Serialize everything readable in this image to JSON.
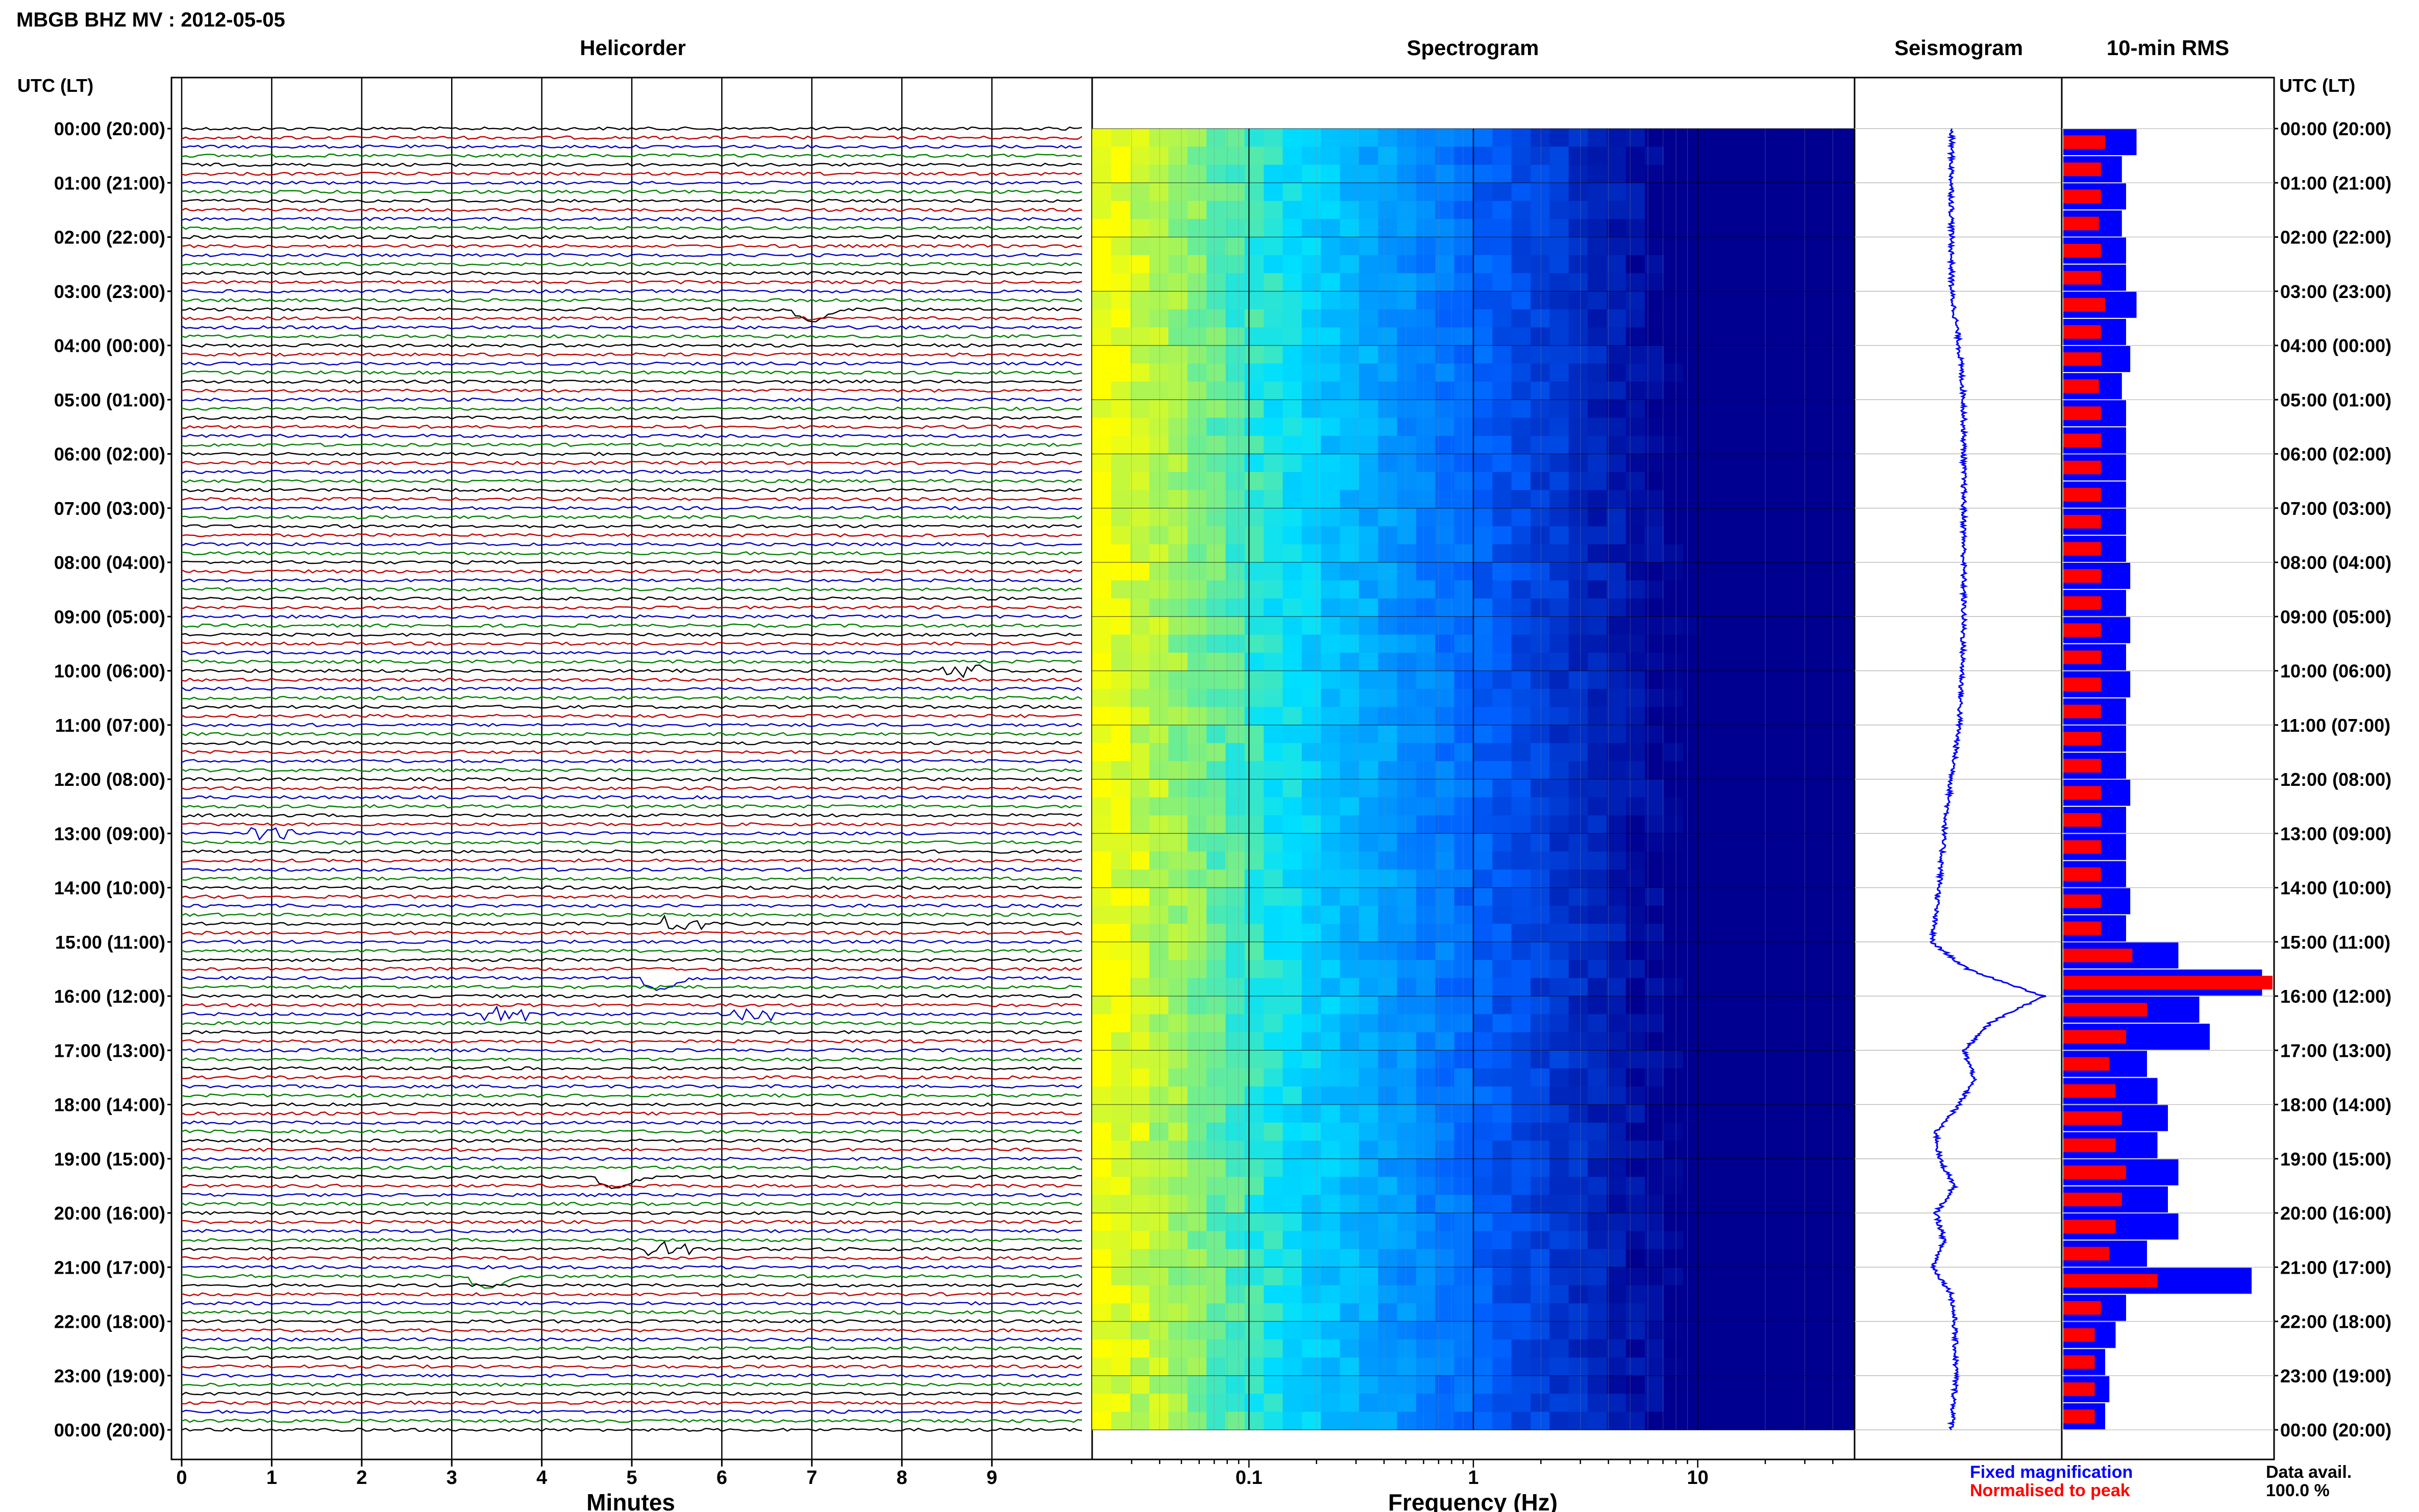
{
  "header": {
    "title": "MBGB BHZ MV : 2012-05-05"
  },
  "panels": {
    "helicorder": "Helicorder",
    "spectrogram": "Spectrogram",
    "seismogram": "Seismogram",
    "rms": "10-min RMS"
  },
  "axis_labels": {
    "left_time": "UTC (LT)",
    "right_time": "UTC (LT)",
    "helicorder_x": "Minutes",
    "spectrogram_x": "Frequency (Hz)"
  },
  "legend": {
    "fixed": "Fixed magnification",
    "normalised": "Normalised to peak",
    "fixed_color": "#0000ff",
    "normalised_color": "#ff0000"
  },
  "data_avail": {
    "label": "Data avail.",
    "value": "100.0 %"
  },
  "colors": {
    "trace_cycle": [
      "#000000",
      "#c00000",
      "#0000c0",
      "#008000"
    ],
    "seismogram": "#0000ff",
    "rms_fixed": "#0000ff",
    "rms_normalised": "#ff0000"
  },
  "chart_data": [
    {
      "type": "line",
      "panel": "helicorder",
      "title": "Helicorder",
      "xlabel": "Minutes",
      "xticks": [
        "0",
        "1",
        "2",
        "3",
        "4",
        "5",
        "6",
        "7",
        "8",
        "9"
      ],
      "xlim": [
        0,
        10
      ],
      "rows_per_day": 144,
      "row_minutes": 10,
      "time_ticks": [
        "00:00 (20:00)",
        "01:00 (21:00)",
        "02:00 (22:00)",
        "03:00 (23:00)",
        "04:00 (00:00)",
        "05:00 (01:00)",
        "06:00 (02:00)",
        "07:00 (03:00)",
        "08:00 (04:00)",
        "09:00 (05:00)",
        "10:00 (06:00)",
        "11:00 (07:00)",
        "12:00 (08:00)",
        "13:00 (09:00)",
        "14:00 (10:00)",
        "15:00 (11:00)",
        "16:00 (12:00)",
        "17:00 (13:00)",
        "18:00 (14:00)",
        "19:00 (15:00)",
        "20:00 (16:00)",
        "21:00 (17:00)",
        "22:00 (18:00)",
        "23:00 (19:00)",
        "00:00 (20:00)"
      ]
    },
    {
      "type": "heatmap",
      "panel": "spectrogram",
      "title": "Spectrogram",
      "xlabel": "Frequency (Hz)",
      "xscale": "log",
      "xlim": [
        0.02,
        50
      ],
      "xticks": [
        "0.1",
        "1",
        "10"
      ],
      "colormap": [
        "#ffff00",
        "#00e0ff",
        "#0060ff",
        "#000090"
      ]
    },
    {
      "type": "line",
      "panel": "seismogram",
      "title": "Seismogram",
      "hours": [
        0,
        1,
        2,
        3,
        4,
        5,
        6,
        7,
        8,
        9,
        10,
        11,
        12,
        13,
        14,
        15,
        15.5,
        16,
        16.5,
        17,
        17.5,
        18,
        18.5,
        19,
        19.5,
        20,
        20.5,
        21,
        21.5,
        22,
        23,
        24
      ],
      "offset": [
        0,
        0,
        0,
        0,
        0.05,
        0.08,
        0.08,
        0.08,
        0.08,
        0.08,
        0.07,
        0.05,
        0,
        -0.05,
        -0.08,
        -0.13,
        0.1,
        0.6,
        0.25,
        0.08,
        0.15,
        0.05,
        -0.1,
        -0.08,
        0.02,
        -0.1,
        -0.05,
        -0.12,
        0,
        0.02,
        0.03,
        0
      ]
    },
    {
      "type": "bar",
      "panel": "rms",
      "title": "10-min RMS",
      "hours": [
        0,
        0.5,
        1,
        1.5,
        2,
        2.5,
        3,
        3.5,
        4,
        4.5,
        5,
        5.5,
        6,
        6.5,
        7,
        7.5,
        8,
        8.5,
        9,
        9.5,
        10,
        10.5,
        11,
        11.5,
        12,
        12.5,
        13,
        13.5,
        14,
        14.5,
        15,
        15.5,
        16,
        16.5,
        17,
        17.5,
        18,
        18.5,
        19,
        19.5,
        20,
        20.5,
        21,
        21.5,
        22,
        22.5,
        23,
        23.5
      ],
      "series": [
        {
          "name": "Fixed magnification",
          "values": [
            0.35,
            0.28,
            0.3,
            0.28,
            0.3,
            0.3,
            0.35,
            0.3,
            0.32,
            0.28,
            0.3,
            0.3,
            0.3,
            0.3,
            0.3,
            0.3,
            0.32,
            0.3,
            0.32,
            0.3,
            0.32,
            0.3,
            0.3,
            0.3,
            0.32,
            0.3,
            0.3,
            0.3,
            0.32,
            0.3,
            0.55,
            0.95,
            0.65,
            0.7,
            0.4,
            0.45,
            0.5,
            0.45,
            0.55,
            0.5,
            0.55,
            0.4,
            0.9,
            0.3,
            0.25,
            0.2,
            0.22,
            0.2
          ]
        },
        {
          "name": "Normalised to peak",
          "values": [
            0.2,
            0.18,
            0.18,
            0.17,
            0.18,
            0.18,
            0.2,
            0.18,
            0.18,
            0.17,
            0.18,
            0.18,
            0.18,
            0.18,
            0.18,
            0.18,
            0.18,
            0.18,
            0.18,
            0.18,
            0.18,
            0.18,
            0.18,
            0.18,
            0.18,
            0.18,
            0.18,
            0.18,
            0.18,
            0.18,
            0.33,
            1.0,
            0.4,
            0.3,
            0.22,
            0.25,
            0.28,
            0.25,
            0.3,
            0.28,
            0.25,
            0.22,
            0.45,
            0.18,
            0.15,
            0.15,
            0.15,
            0.15
          ]
        }
      ]
    }
  ]
}
